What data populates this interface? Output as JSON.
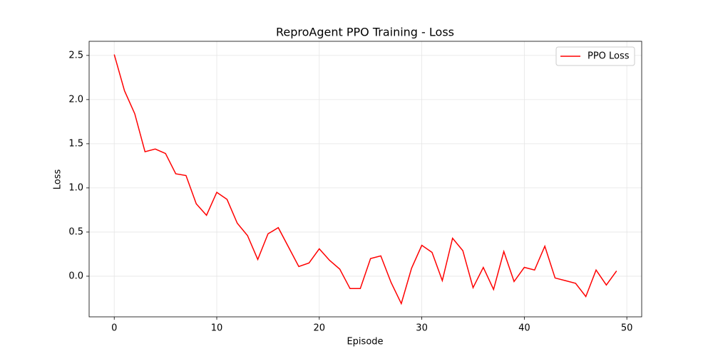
{
  "chart_data": {
    "type": "line",
    "title": "ReproAgent PPO Training - Loss",
    "x_label": "Episode",
    "y_label": "Loss",
    "x": [
      0,
      1,
      2,
      3,
      4,
      5,
      6,
      7,
      8,
      9,
      10,
      11,
      12,
      13,
      14,
      15,
      16,
      17,
      18,
      19,
      20,
      21,
      22,
      23,
      24,
      25,
      26,
      27,
      28,
      29,
      30,
      31,
      32,
      33,
      34,
      35,
      36,
      37,
      38,
      39,
      40,
      41,
      42,
      43,
      44,
      45,
      46,
      47,
      48,
      49
    ],
    "series": [
      {
        "name": "PPO Loss",
        "color": "#ff0000",
        "values": [
          2.51,
          2.1,
          1.84,
          1.41,
          1.44,
          1.39,
          1.16,
          1.14,
          0.82,
          0.69,
          0.95,
          0.87,
          0.6,
          0.46,
          0.19,
          0.48,
          0.55,
          0.33,
          0.11,
          0.15,
          0.31,
          0.18,
          0.08,
          -0.14,
          -0.14,
          0.2,
          0.23,
          -0.07,
          -0.31,
          0.09,
          0.35,
          0.27,
          -0.05,
          0.43,
          0.29,
          -0.13,
          0.1,
          -0.15,
          0.28,
          -0.06,
          0.1,
          0.07,
          0.34,
          -0.02,
          -0.05,
          -0.08,
          -0.23,
          0.07,
          -0.1,
          0.06
        ]
      }
    ],
    "xlim": [
      -2.45,
      51.45
    ],
    "ylim": [
      -0.46,
      2.66
    ],
    "xticks": [
      0,
      10,
      20,
      30,
      40,
      50
    ],
    "yticks": [
      {
        "value": 0,
        "label": "0.0"
      },
      0.5,
      {
        "value": 1,
        "label": "1.0"
      },
      1.5,
      {
        "value": 2,
        "label": "2.0"
      },
      2.5
    ],
    "grid": true,
    "legend": "upper right"
  }
}
